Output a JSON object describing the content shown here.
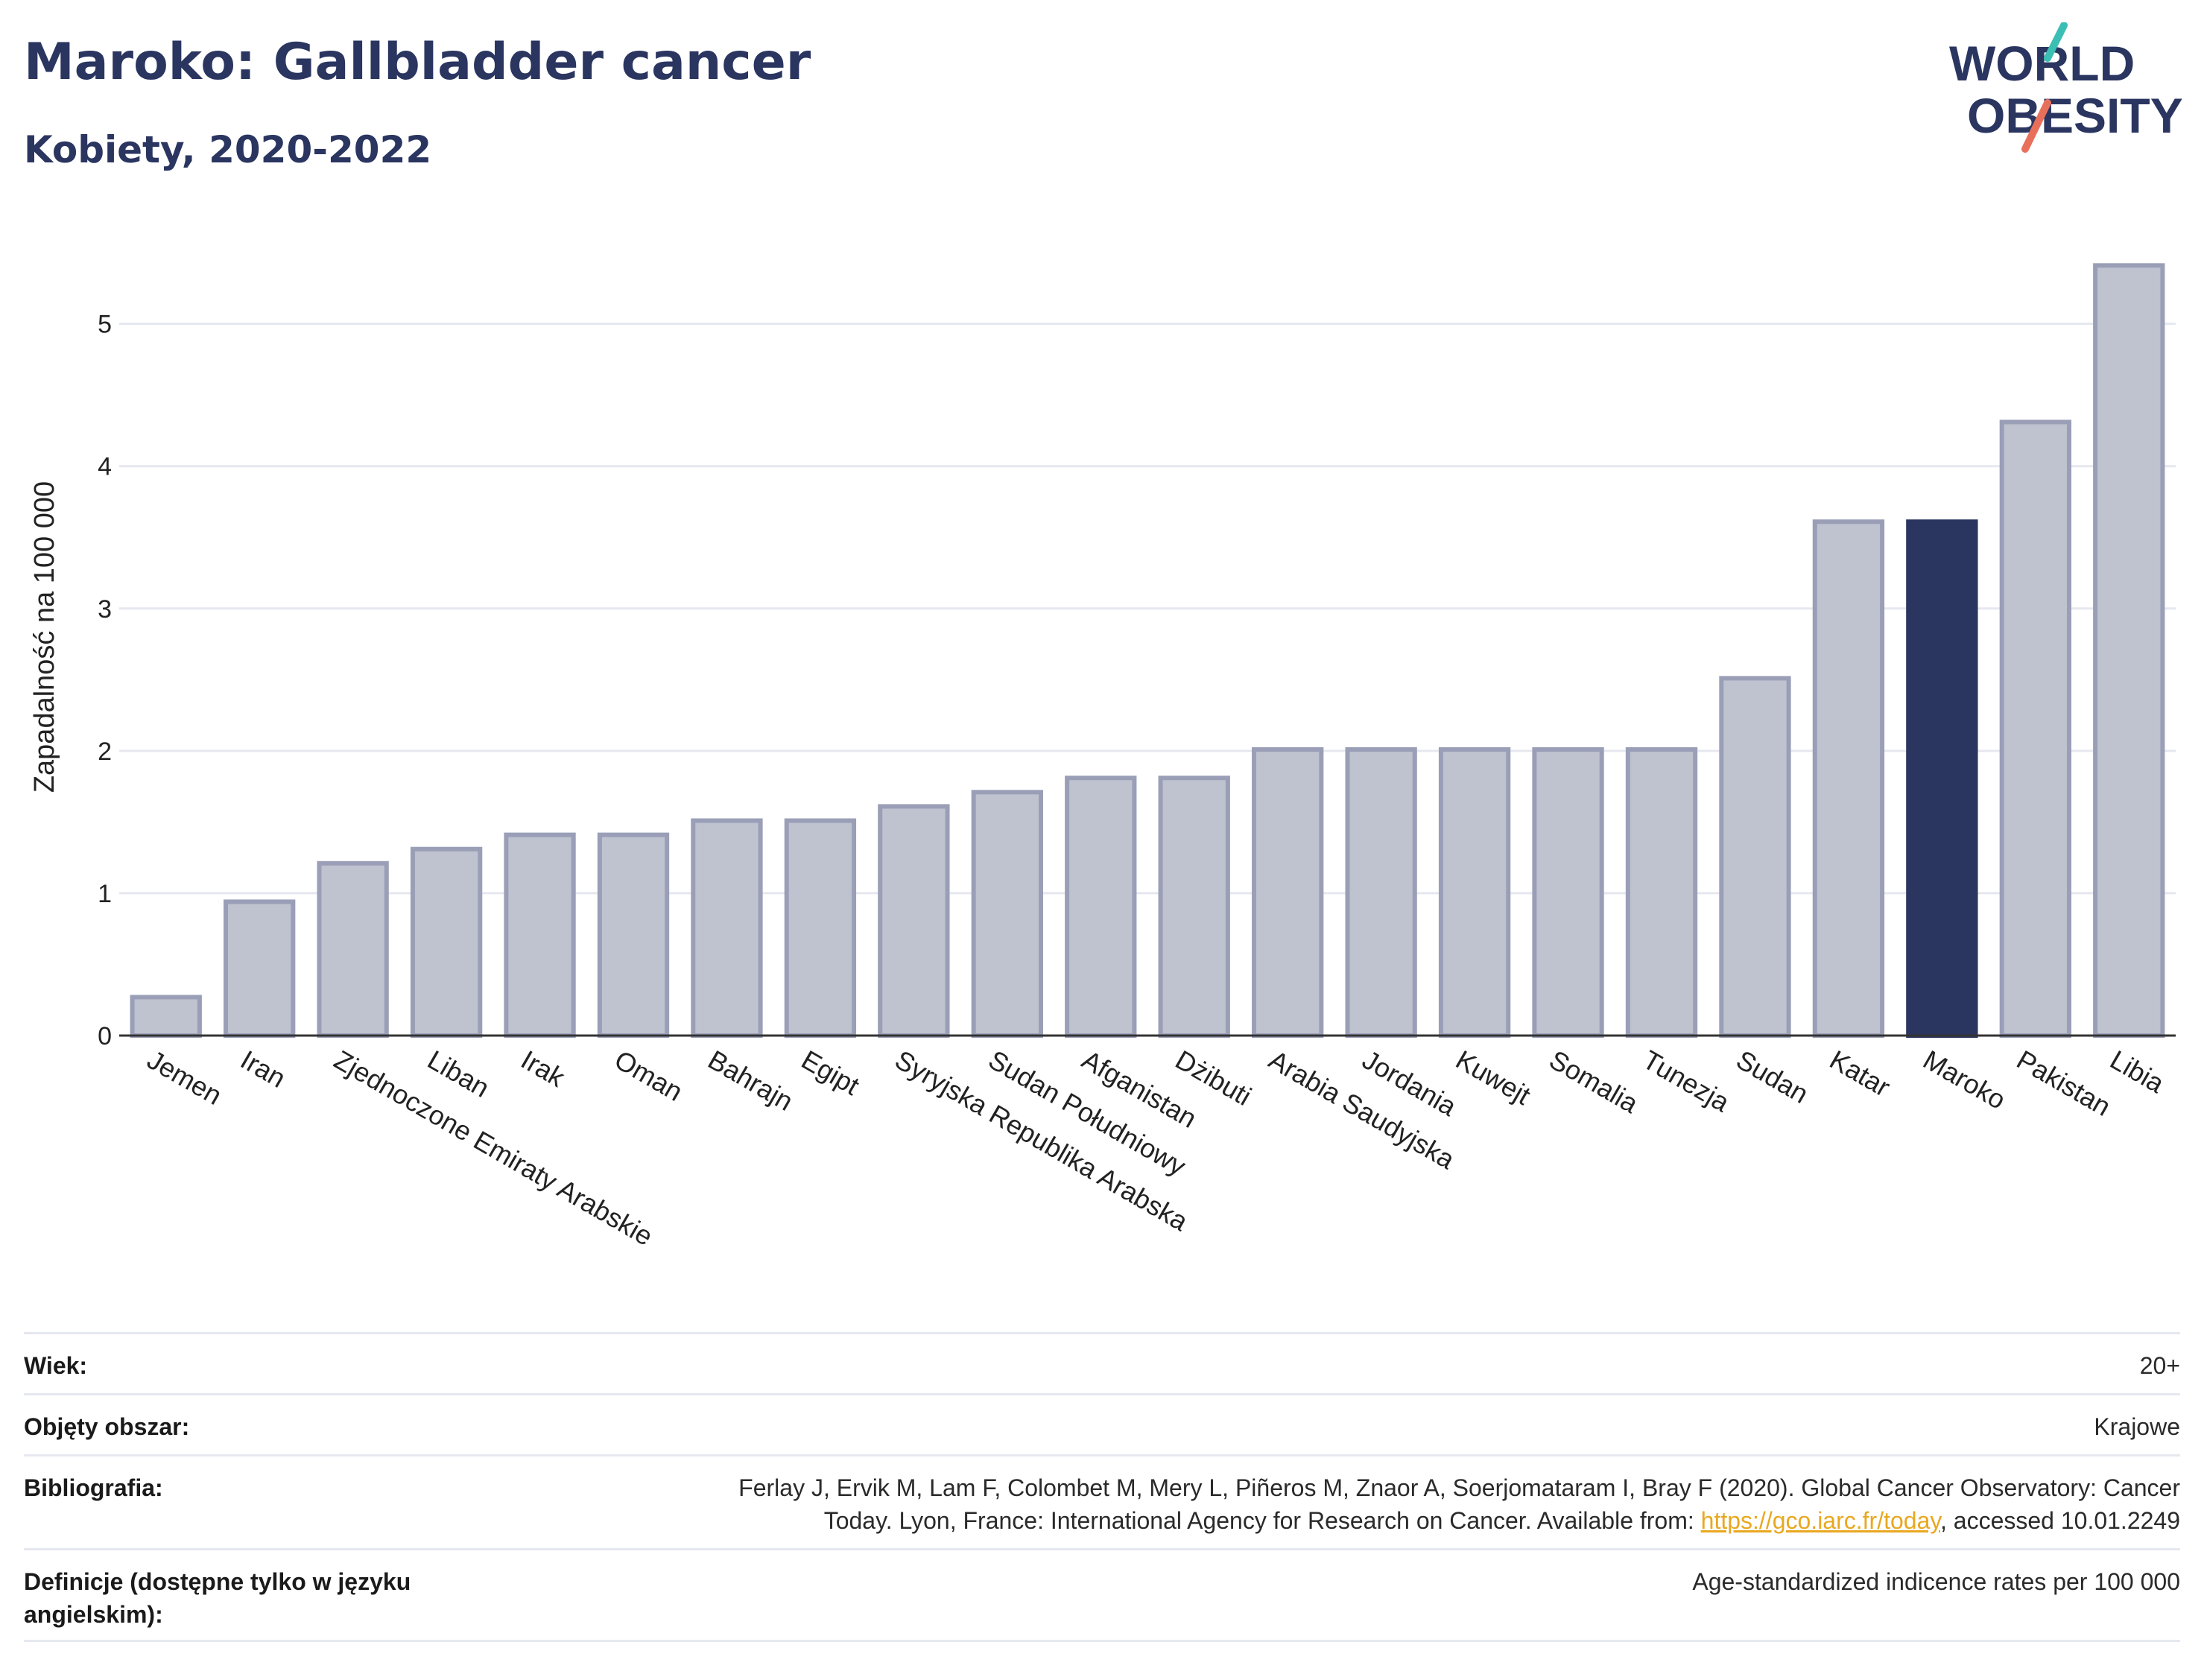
{
  "header": {
    "title": "Maroko: Gallbladder cancer",
    "subtitle": "Kobiety, 2020-2022"
  },
  "logo": {
    "line1": "WORLD",
    "line2": "OBESITY"
  },
  "chart_data": {
    "type": "bar",
    "ylabel": "Zapadalność na 100 000",
    "ylim": [
      0,
      5.6
    ],
    "yticks": [
      0,
      1,
      2,
      3,
      4,
      5
    ],
    "grid": true,
    "highlight": "Maroko",
    "colors": {
      "bar": "#bfc2cf",
      "bar_border": "#9a9fb7",
      "highlight": "#2a3560",
      "grid": "#e6e8ef",
      "axis": "#333333"
    },
    "categories": [
      "Jemen",
      "Iran",
      "Zjednoczone Emiraty Arabskie",
      "Liban",
      "Irak",
      "Oman",
      "Bahrajn",
      "Egipt",
      "Syryjska Republika Arabska",
      "Sudan Południowy",
      "Afganistan",
      "Dżibuti",
      "Arabia Saudyjska",
      "Jordania",
      "Kuwejt",
      "Somalia",
      "Tunezja",
      "Sudan",
      "Katar",
      "Maroko",
      "Pakistan",
      "Libia"
    ],
    "values": [
      0.27,
      0.94,
      1.21,
      1.31,
      1.41,
      1.41,
      1.51,
      1.51,
      1.61,
      1.71,
      1.81,
      1.81,
      2.01,
      2.01,
      2.01,
      2.01,
      2.01,
      2.51,
      3.61,
      3.61,
      4.31,
      5.41
    ]
  },
  "meta": {
    "rows": [
      {
        "label": "Wiek:",
        "value": "20+"
      },
      {
        "label": "Objęty obszar:",
        "value": "Krajowe"
      },
      {
        "label": "Bibliografia:",
        "value_line1": "Ferlay J, Ervik M, Lam F, Colombet M, Mery L, Piñeros M, Znaor A, Soerjomataram I, Bray F (2020). Global Cancer Observatory: Cancer",
        "value_pre": "Today. Lyon, France: International Agency for Research on Cancer. Available from: ",
        "link": "https://gco.iarc.fr/today",
        "value_post": ", accessed 10.01.2249"
      },
      {
        "label": "Definicje (dostępne tylko w języku angielskim):",
        "value": "Age-standardized indicence rates per 100 000"
      }
    ]
  }
}
